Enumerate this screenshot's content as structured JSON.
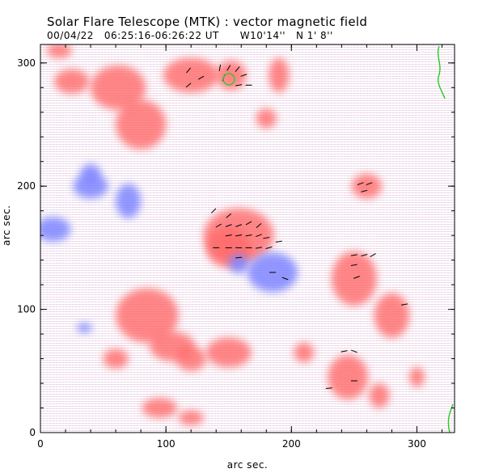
{
  "header": {
    "title": "Solar Flare Telescope (MTK) : vector magnetic field",
    "subtitle": "00/04/22   06:25:16-06:26:22 UT      W10'14''   N 1' 8''"
  },
  "axes": {
    "xlabel": "arc sec.",
    "ylabel": "arc sec.",
    "x_ticks": [
      "0",
      "100",
      "200",
      "300"
    ],
    "y_ticks": [
      "0",
      "100",
      "200",
      "300"
    ],
    "x_range": [
      0,
      330
    ],
    "y_range": [
      0,
      315
    ]
  },
  "colors": {
    "positive_polarity": "#ff6b6b",
    "negative_polarity": "#7f86ff",
    "vectors": "#000000",
    "contour": "#22cc22",
    "background": "#ffffff"
  },
  "magnetogram": {
    "positive_regions": [
      {
        "x": 158,
        "y": 160,
        "rx": 28,
        "ry": 22
      },
      {
        "x": 150,
        "y": 150,
        "rx": 18,
        "ry": 16
      },
      {
        "x": 120,
        "y": 290,
        "rx": 22,
        "ry": 14
      },
      {
        "x": 152,
        "y": 290,
        "rx": 12,
        "ry": 12
      },
      {
        "x": 80,
        "y": 250,
        "rx": 20,
        "ry": 20
      },
      {
        "x": 62,
        "y": 280,
        "rx": 22,
        "ry": 18
      },
      {
        "x": 25,
        "y": 285,
        "rx": 14,
        "ry": 10
      },
      {
        "x": 190,
        "y": 290,
        "rx": 8,
        "ry": 14
      },
      {
        "x": 180,
        "y": 255,
        "rx": 8,
        "ry": 8
      },
      {
        "x": 260,
        "y": 200,
        "rx": 12,
        "ry": 10
      },
      {
        "x": 250,
        "y": 125,
        "rx": 18,
        "ry": 22
      },
      {
        "x": 280,
        "y": 95,
        "rx": 14,
        "ry": 18
      },
      {
        "x": 85,
        "y": 95,
        "rx": 25,
        "ry": 22
      },
      {
        "x": 105,
        "y": 70,
        "rx": 18,
        "ry": 12
      },
      {
        "x": 150,
        "y": 65,
        "rx": 18,
        "ry": 12
      },
      {
        "x": 120,
        "y": 60,
        "rx": 12,
        "ry": 10
      },
      {
        "x": 210,
        "y": 65,
        "rx": 8,
        "ry": 8
      },
      {
        "x": 245,
        "y": 45,
        "rx": 16,
        "ry": 18
      },
      {
        "x": 60,
        "y": 60,
        "rx": 10,
        "ry": 8
      },
      {
        "x": 95,
        "y": 20,
        "rx": 14,
        "ry": 8
      },
      {
        "x": 120,
        "y": 12,
        "rx": 10,
        "ry": 6
      },
      {
        "x": 270,
        "y": 30,
        "rx": 8,
        "ry": 10
      },
      {
        "x": 300,
        "y": 45,
        "rx": 6,
        "ry": 8
      },
      {
        "x": 15,
        "y": 310,
        "rx": 10,
        "ry": 6
      }
    ],
    "negative_regions": [
      {
        "x": 185,
        "y": 130,
        "rx": 20,
        "ry": 16
      },
      {
        "x": 158,
        "y": 137,
        "rx": 8,
        "ry": 8
      },
      {
        "x": 70,
        "y": 188,
        "rx": 10,
        "ry": 14
      },
      {
        "x": 40,
        "y": 200,
        "rx": 14,
        "ry": 10
      },
      {
        "x": 10,
        "y": 165,
        "rx": 14,
        "ry": 10
      },
      {
        "x": 35,
        "y": 85,
        "rx": 6,
        "ry": 4
      },
      {
        "x": 40,
        "y": 210,
        "rx": 8,
        "ry": 8
      }
    ],
    "vectors": [
      {
        "x": 118,
        "y": 294,
        "a": 50
      },
      {
        "x": 118,
        "y": 282,
        "a": 40
      },
      {
        "x": 128,
        "y": 288,
        "a": 30
      },
      {
        "x": 143,
        "y": 296,
        "a": 80
      },
      {
        "x": 150,
        "y": 296,
        "a": 60
      },
      {
        "x": 157,
        "y": 295,
        "a": 50
      },
      {
        "x": 162,
        "y": 290,
        "a": 20
      },
      {
        "x": 146,
        "y": 288,
        "a": 70
      },
      {
        "x": 158,
        "y": 282,
        "a": 10
      },
      {
        "x": 166,
        "y": 282,
        "a": 0
      },
      {
        "x": 138,
        "y": 180,
        "a": 45
      },
      {
        "x": 142,
        "y": 168,
        "a": 30
      },
      {
        "x": 150,
        "y": 176,
        "a": 40
      },
      {
        "x": 150,
        "y": 168,
        "a": 20
      },
      {
        "x": 158,
        "y": 168,
        "a": 20
      },
      {
        "x": 166,
        "y": 170,
        "a": 30
      },
      {
        "x": 174,
        "y": 168,
        "a": 40
      },
      {
        "x": 150,
        "y": 160,
        "a": 10
      },
      {
        "x": 158,
        "y": 160,
        "a": 10
      },
      {
        "x": 166,
        "y": 160,
        "a": 10
      },
      {
        "x": 174,
        "y": 160,
        "a": 20
      },
      {
        "x": 180,
        "y": 158,
        "a": 10
      },
      {
        "x": 150,
        "y": 150,
        "a": 0
      },
      {
        "x": 158,
        "y": 150,
        "a": 0
      },
      {
        "x": 166,
        "y": 150,
        "a": 0
      },
      {
        "x": 174,
        "y": 150,
        "a": 10
      },
      {
        "x": 182,
        "y": 150,
        "a": 15
      },
      {
        "x": 190,
        "y": 155,
        "a": 10
      },
      {
        "x": 140,
        "y": 150,
        "a": 0
      },
      {
        "x": 158,
        "y": 142,
        "a": 5
      },
      {
        "x": 185,
        "y": 130,
        "a": 0
      },
      {
        "x": 195,
        "y": 125,
        "a": -20
      },
      {
        "x": 255,
        "y": 202,
        "a": 20
      },
      {
        "x": 262,
        "y": 202,
        "a": 20
      },
      {
        "x": 258,
        "y": 196,
        "a": 15
      },
      {
        "x": 250,
        "y": 144,
        "a": 10
      },
      {
        "x": 258,
        "y": 144,
        "a": 15
      },
      {
        "x": 265,
        "y": 144,
        "a": 30
      },
      {
        "x": 250,
        "y": 136,
        "a": 10
      },
      {
        "x": 252,
        "y": 126,
        "a": 20
      },
      {
        "x": 290,
        "y": 104,
        "a": 10
      },
      {
        "x": 242,
        "y": 66,
        "a": 10
      },
      {
        "x": 250,
        "y": 66,
        "a": -20
      },
      {
        "x": 250,
        "y": 42,
        "a": 0
      },
      {
        "x": 230,
        "y": 36,
        "a": 5
      }
    ]
  }
}
